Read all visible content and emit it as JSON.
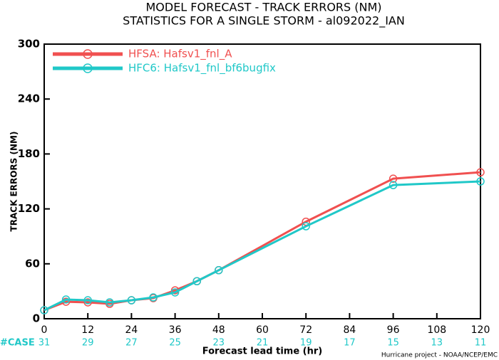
{
  "chart_data": {
    "type": "line",
    "title": "MODEL FORECAST - TRACK ERRORS (NM)",
    "subtitle": "STATISTICS FOR A SINGLE STORM - al092022_IAN",
    "x_label": "Forecast lead time (hr)",
    "y_label": "TRACK ERRORS (NM)",
    "footer": "Hurricane project - NOAA/NCEP/EMC",
    "x": [
      0,
      6,
      12,
      18,
      24,
      30,
      36,
      42,
      48,
      72,
      96,
      120
    ],
    "series": [
      {
        "name": "HFSA: Hafsv1_fnl_A",
        "color": "#f05050",
        "values": [
          9.3,
          18.6,
          17.9,
          16.3,
          20.2,
          22.5,
          31,
          41,
          53,
          106,
          153,
          160
        ]
      },
      {
        "name": "HFC6: Hafsv1_fnl_bf6bugfix",
        "color": "#20c8c8",
        "values": [
          9.3,
          21,
          20.2,
          17.9,
          20.2,
          23.3,
          28.8,
          41,
          53,
          101,
          146,
          150
        ]
      }
    ],
    "xlim": [
      0,
      120
    ],
    "xticks": [
      0,
      12,
      24,
      36,
      48,
      60,
      72,
      84,
      96,
      108,
      120
    ],
    "ylim": [
      0,
      300
    ],
    "yticks": [
      0,
      60,
      120,
      180,
      240,
      300
    ],
    "case_label": "#CASE",
    "case_x": [
      0,
      12,
      24,
      36,
      48,
      60,
      72,
      84,
      96,
      108,
      120
    ],
    "case_counts": [
      31,
      29,
      27,
      25,
      23,
      21,
      19,
      17,
      15,
      13,
      11
    ],
    "case_color": "#20c8c8",
    "legend": "upper left",
    "grid": false
  }
}
